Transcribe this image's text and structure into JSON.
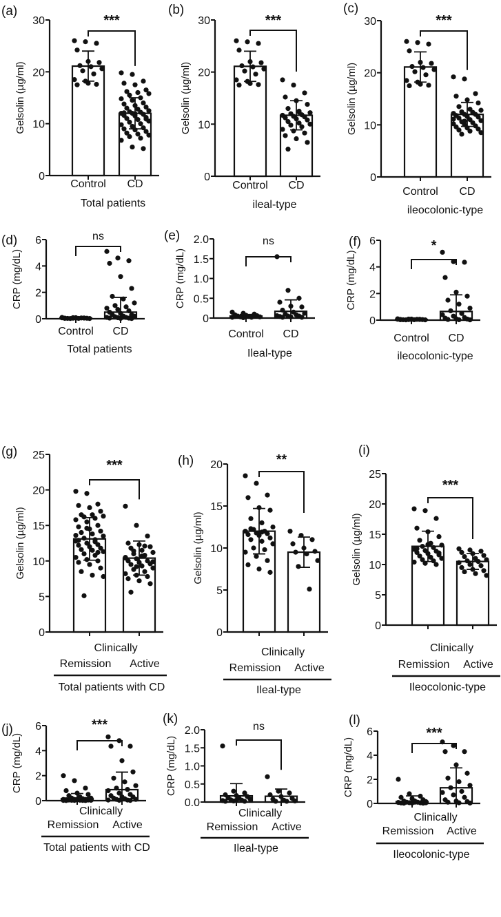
{
  "chart_data": [
    {
      "id": "a",
      "type": "bar",
      "panel_label": "(a)",
      "ylabel": "Gelsolin (µg/ml)",
      "ylim": [
        0,
        30
      ],
      "yticks": [
        "0",
        "10",
        "20",
        "30"
      ],
      "ytick_values": [
        0,
        10,
        20,
        30
      ],
      "significance": "***",
      "categories": [
        "Control",
        "CD"
      ],
      "clinically_label": "",
      "xlabel": "Total patients",
      "series": [
        {
          "name": "Control",
          "mean": 21.1,
          "sd": 2.9,
          "points": [
            26,
            25.8,
            25.5,
            24.2,
            22,
            21.8,
            21.2,
            21,
            20.6,
            20.2,
            19.6,
            18.5,
            18.2,
            17.6,
            17.5,
            17.8
          ]
        },
        {
          "name": "CD",
          "mean": 12.0,
          "sd": 3.0,
          "points": [
            19.8,
            19.5,
            18.2,
            17.8,
            17.5,
            16.5,
            16.2,
            16,
            15.8,
            15.5,
            15,
            14.8,
            14.5,
            14,
            13.8,
            13.5,
            13.2,
            13,
            12.8,
            12.5,
            12.3,
            12.2,
            12,
            12,
            11.8,
            11.6,
            11.5,
            11.2,
            11,
            10.8,
            10.5,
            10.3,
            10,
            9.8,
            9.5,
            9.2,
            9,
            8.8,
            8.5,
            8.2,
            8,
            7.8,
            7.5,
            7.2,
            6.8,
            5.5,
            5.2,
            12.1,
            11.9,
            10.9
          ]
        }
      ]
    },
    {
      "id": "b",
      "type": "bar",
      "panel_label": "(b)",
      "ylabel": "Gelsolin (µg/ml)",
      "ylim": [
        0,
        30
      ],
      "yticks": [
        "0",
        "10",
        "20",
        "30"
      ],
      "ytick_values": [
        0,
        10,
        20,
        30
      ],
      "significance": "***",
      "categories": [
        "Control",
        "CD"
      ],
      "clinically_label": "",
      "xlabel": "ileal-type",
      "series": [
        {
          "name": "Control",
          "mean": 21.1,
          "sd": 2.9,
          "points": [
            26,
            25.8,
            25.5,
            24.2,
            22,
            21.8,
            21.2,
            21,
            20.6,
            20.2,
            19.6,
            18.5,
            18.2,
            17.6,
            17.5,
            17.8
          ]
        },
        {
          "name": "CD",
          "mean": 11.7,
          "sd": 2.8,
          "points": [
            18.5,
            17.5,
            16,
            15.2,
            14.5,
            13.8,
            13,
            12.5,
            12.2,
            12,
            11.8,
            11.7,
            11.5,
            11.4,
            11.2,
            11,
            10.8,
            10.5,
            10.2,
            10,
            9.8,
            9.5,
            9,
            8.7,
            8.3,
            7.8,
            7.2,
            6.5,
            5.2,
            12.3
          ]
        }
      ]
    },
    {
      "id": "c",
      "type": "bar",
      "panel_label": "(c)",
      "ylabel": "Gelsolin (µg/ml)",
      "ylim": [
        0,
        30
      ],
      "yticks": [
        "0",
        "10",
        "20",
        "30"
      ],
      "ytick_values": [
        0,
        10,
        20,
        30
      ],
      "significance": "***",
      "categories": [
        "Control",
        "CD"
      ],
      "clinically_label": "",
      "xlabel": "ileocolonic-type",
      "series": [
        {
          "name": "Control",
          "mean": 21.1,
          "sd": 2.9,
          "points": [
            26,
            25.8,
            25.5,
            24.2,
            22,
            21.8,
            21.2,
            21,
            20.6,
            20.2,
            19.6,
            18.5,
            18.2,
            17.6,
            17.5,
            17.8
          ]
        },
        {
          "name": "CD",
          "mean": 12.0,
          "sd": 2.3,
          "points": [
            19.2,
            18.8,
            16,
            15.5,
            14.8,
            14.2,
            13.5,
            13,
            12.8,
            12.5,
            12.3,
            12.2,
            12,
            12,
            11.8,
            11.6,
            11.5,
            11.3,
            11,
            10.8,
            10.6,
            10.4,
            10.2,
            10,
            9.8,
            9.6,
            9.4,
            9.2,
            9,
            8.8,
            8.5,
            8.2,
            12.4,
            11.1,
            10.7
          ]
        }
      ]
    },
    {
      "id": "d",
      "type": "bar",
      "panel_label": "(d)",
      "ylabel": "CRP (mg/dL)",
      "ylim": [
        0,
        6
      ],
      "yticks": [
        "0",
        "2",
        "4",
        "6"
      ],
      "ytick_values": [
        0,
        2,
        4,
        6
      ],
      "significance": "ns",
      "categories": [
        "Control",
        "CD"
      ],
      "clinically_label": "",
      "xlabel": "Total patients",
      "series": [
        {
          "name": "Control",
          "mean": 0.05,
          "sd": 0.03,
          "points": [
            0.1,
            0.08,
            0.06,
            0.05,
            0.05,
            0.04,
            0.03,
            0.03,
            0.02,
            0.02,
            0.06,
            0.07,
            0.04,
            0.05,
            0.03,
            0.08
          ]
        },
        {
          "name": "CD",
          "mean": 0.5,
          "sd": 1.12,
          "points": [
            5.1,
            4.6,
            4.4,
            4.2,
            3.2,
            2.3,
            1.7,
            1.5,
            1.2,
            1.0,
            0.9,
            0.8,
            0.7,
            0.6,
            0.5,
            0.4,
            0.3,
            0.3,
            0.2,
            0.2,
            0.15,
            0.1,
            0.1,
            0.08,
            0.05,
            0.05,
            0.03,
            0.02
          ]
        }
      ]
    },
    {
      "id": "e",
      "type": "bar",
      "panel_label": "(e)",
      "ylabel": "CRP (mg/dL)",
      "ylim": [
        0,
        2
      ],
      "yticks": [
        "0",
        "0.5",
        "1.0",
        "1.5",
        "2.0"
      ],
      "ytick_values": [
        0,
        0.5,
        1,
        1.5,
        2
      ],
      "significance": "ns",
      "categories": [
        "Control",
        "CD"
      ],
      "clinically_label": "",
      "xlabel": "Ileal-type",
      "series": [
        {
          "name": "Control",
          "mean": 0.05,
          "sd": 0.04,
          "points": [
            0.15,
            0.12,
            0.1,
            0.08,
            0.07,
            0.06,
            0.05,
            0.04,
            0.03,
            0.03,
            0.02,
            0.02,
            0.01,
            0.05,
            0.04,
            0.06
          ]
        },
        {
          "name": "CD",
          "mean": 0.17,
          "sd": 0.29,
          "points": [
            1.55,
            0.7,
            0.5,
            0.4,
            0.3,
            0.28,
            0.2,
            0.15,
            0.12,
            0.1,
            0.08,
            0.06,
            0.05,
            0.05,
            0.04,
            0.03,
            0.02,
            0.02
          ]
        }
      ]
    },
    {
      "id": "f",
      "type": "bar",
      "panel_label": "(f)",
      "ylabel": "CRP (mg/dL)",
      "ylim": [
        0,
        6
      ],
      "yticks": [
        "0",
        "2",
        "4",
        "6"
      ],
      "ytick_values": [
        0,
        2,
        4,
        6
      ],
      "significance": "*",
      "categories": [
        "Control",
        "CD"
      ],
      "clinically_label": "",
      "xlabel": "ileocolonic-type",
      "series": [
        {
          "name": "Control",
          "mean": 0.05,
          "sd": 0.03,
          "points": [
            0.1,
            0.08,
            0.06,
            0.05,
            0.05,
            0.04,
            0.03,
            0.03,
            0.02,
            0.02,
            0.06,
            0.07,
            0.04,
            0.05,
            0.03,
            0.08
          ]
        },
        {
          "name": "CD",
          "mean": 0.65,
          "sd": 1.25,
          "points": [
            5.1,
            4.4,
            4.35,
            3.2,
            2.1,
            1.8,
            1.5,
            1.2,
            0.9,
            0.7,
            0.5,
            0.4,
            0.3,
            0.2,
            0.15,
            0.1,
            0.08,
            0.05,
            0.03,
            0.02
          ]
        }
      ]
    },
    {
      "id": "g",
      "type": "bar",
      "panel_label": "(g)",
      "ylabel": "Gelsolin (µg/ml)",
      "ylim": [
        0,
        25
      ],
      "yticks": [
        "0",
        "5",
        "10",
        "15",
        "20",
        "25"
      ],
      "ytick_values": [
        0,
        5,
        10,
        15,
        20,
        25
      ],
      "significance": "***",
      "categories": [
        "Remission",
        "Active"
      ],
      "clinically_label": "Clinically",
      "xlabel": "Total patients with CD",
      "series": [
        {
          "name": "Remission",
          "mean": 13.1,
          "sd": 3.0,
          "points": [
            19.8,
            19.5,
            18,
            17.8,
            17.5,
            17,
            16.5,
            16.5,
            16.3,
            16.2,
            16,
            15.8,
            15.5,
            15,
            14.8,
            14.5,
            14.2,
            14,
            13.8,
            13.5,
            13.2,
            13,
            12.8,
            12.5,
            12.3,
            12.2,
            12,
            11.8,
            11.6,
            11.5,
            11.3,
            11,
            10.8,
            10.5,
            10.2,
            10,
            9.8,
            9.5,
            9,
            8.5,
            8,
            7.8,
            5.1,
            12.7,
            13.6,
            14.6,
            11.2,
            12.9
          ]
        },
        {
          "name": "Active",
          "mean": 10.4,
          "sd": 2.4,
          "points": [
            17.7,
            15,
            13.5,
            12.5,
            12.3,
            12,
            11.8,
            11.5,
            11.2,
            11,
            10.8,
            10.5,
            10.3,
            10,
            10,
            9.8,
            9.6,
            9.5,
            9.3,
            9,
            8.8,
            8.5,
            8.2,
            8,
            7.8,
            7.5,
            7.2,
            6.8,
            5.6,
            10.7,
            9.9,
            11.4,
            12.1,
            10.4,
            9.2
          ]
        }
      ]
    },
    {
      "id": "h",
      "type": "bar",
      "panel_label": "(h)",
      "ylabel": "Gelsolin (µg/ml)",
      "ylim": [
        0,
        20
      ],
      "yticks": [
        "0",
        "5",
        "10",
        "15",
        "20"
      ],
      "ytick_values": [
        0,
        5,
        10,
        15,
        20
      ],
      "significance": "**",
      "categories": [
        "Remission",
        "Active"
      ],
      "clinically_label": "Clinically",
      "xlabel": "Ileal-type",
      "series": [
        {
          "name": "Remission",
          "mean": 12.0,
          "sd": 2.7,
          "points": [
            18.6,
            17.7,
            16.3,
            16,
            14.8,
            14.5,
            13.5,
            13,
            12.5,
            12.2,
            12,
            12,
            11.8,
            11.7,
            11.6,
            11.5,
            11.2,
            11,
            10.8,
            10.5,
            10,
            9.8,
            9.5,
            9,
            8.5,
            8,
            7.5,
            7.1,
            12.3,
            11.9
          ]
        },
        {
          "name": "Active",
          "mean": 9.5,
          "sd": 1.8,
          "points": [
            12,
            11.5,
            11,
            10.5,
            10,
            9.6,
            9.5,
            9.3,
            8.5,
            7.8,
            5.1
          ]
        }
      ]
    },
    {
      "id": "i",
      "type": "bar",
      "panel_label": "(i)",
      "ylabel": "Gelsolin (µg/ml)",
      "ylim": [
        0,
        25
      ],
      "yticks": [
        "0",
        "5",
        "10",
        "15",
        "20",
        "25"
      ],
      "ytick_values": [
        0,
        5,
        10,
        15,
        20,
        25
      ],
      "significance": "***",
      "categories": [
        "Remission",
        "Active"
      ],
      "clinically_label": "Clinically",
      "xlabel": "Ileocolonic-type",
      "series": [
        {
          "name": "Remission",
          "mean": 13.0,
          "sd": 2.5,
          "points": [
            19.2,
            18.9,
            17.6,
            16,
            15.4,
            14.6,
            14,
            13.5,
            13.2,
            13,
            12.8,
            12.5,
            12.3,
            12.2,
            12,
            11.8,
            11.6,
            11.4,
            11.2,
            11,
            10.8,
            10.6,
            10.4,
            10.2,
            10,
            12.6,
            13.3,
            11.9
          ]
        },
        {
          "name": "Active",
          "mean": 10.5,
          "sd": 1.3,
          "points": [
            12.6,
            12.4,
            12.2,
            12,
            11.8,
            11.5,
            11.3,
            11,
            10.8,
            10.6,
            10.5,
            10.3,
            10,
            9.8,
            9.5,
            9.2,
            9,
            8.8,
            8.5,
            8.2
          ]
        }
      ]
    },
    {
      "id": "j",
      "type": "bar",
      "panel_label": "(j)",
      "ylabel": "CRP (mg/dL)",
      "ylim": [
        0,
        6
      ],
      "yticks": [
        "0",
        "2",
        "4",
        "6"
      ],
      "ytick_values": [
        0,
        2,
        4,
        6
      ],
      "significance": "***",
      "categories": [
        "Remission",
        "Active"
      ],
      "clinically_label": "Clinically",
      "xlabel": "Total patients with CD",
      "series": [
        {
          "name": "Remission",
          "mean": 0.15,
          "sd": 0.42,
          "points": [
            2.0,
            1.6,
            1.0,
            0.8,
            0.6,
            0.5,
            0.4,
            0.3,
            0.2,
            0.2,
            0.15,
            0.1,
            0.1,
            0.1,
            0.08,
            0.06,
            0.05,
            0.05,
            0.04,
            0.03,
            0.03,
            0.02,
            0.02,
            0.02,
            0.01,
            0.01,
            0.1,
            0.12,
            0.07,
            0.05
          ]
        },
        {
          "name": "Active",
          "mean": 0.88,
          "sd": 1.4,
          "points": [
            5.1,
            4.8,
            4.35,
            4.35,
            3.2,
            2.3,
            1.8,
            1.5,
            1.2,
            1.0,
            0.9,
            0.8,
            0.6,
            0.5,
            0.4,
            0.3,
            0.3,
            0.2,
            0.15,
            0.1,
            0.1,
            0.05,
            0.05,
            0.03,
            0.02
          ]
        }
      ]
    },
    {
      "id": "k",
      "type": "bar",
      "panel_label": "(k)",
      "ylabel": "CRP (mg/dL)",
      "ylim": [
        0,
        2
      ],
      "yticks": [
        "0.0",
        "0.5",
        "1.0",
        "1.5",
        "2.0"
      ],
      "ytick_values": [
        0,
        0.5,
        1,
        1.5,
        2
      ],
      "significance": "ns",
      "categories": [
        "Remission",
        "Active"
      ],
      "clinically_label": "Clinically",
      "xlabel": "Ileal-type",
      "series": [
        {
          "name": "Remission",
          "mean": 0.17,
          "sd": 0.34,
          "points": [
            1.55,
            0.3,
            0.25,
            0.2,
            0.18,
            0.15,
            0.12,
            0.1,
            0.08,
            0.06,
            0.05,
            0.04,
            0.03,
            0.02,
            0.02,
            0.05
          ]
        },
        {
          "name": "Active",
          "mean": 0.16,
          "sd": 0.2,
          "points": [
            0.7,
            0.3,
            0.25,
            0.2,
            0.15,
            0.1,
            0.08,
            0.05,
            0.03,
            0.02,
            0.02
          ]
        }
      ]
    },
    {
      "id": "l",
      "type": "bar",
      "panel_label": "(l)",
      "ylabel": "CRP (mg/dL)",
      "ylim": [
        0,
        6
      ],
      "yticks": [
        "0",
        "2",
        "4",
        "6"
      ],
      "ytick_values": [
        0,
        2,
        4,
        6
      ],
      "significance": "***",
      "categories": [
        "Remission",
        "Active"
      ],
      "clinically_label": "Clinically",
      "xlabel": "Ileocolonic-type",
      "series": [
        {
          "name": "Remission",
          "mean": 0.15,
          "sd": 0.47,
          "points": [
            2.0,
            0.8,
            0.6,
            0.5,
            0.4,
            0.3,
            0.2,
            0.2,
            0.15,
            0.1,
            0.1,
            0.08,
            0.06,
            0.05,
            0.04,
            0.03,
            0.02,
            0.02,
            0.1,
            0.05
          ]
        },
        {
          "name": "Active",
          "mean": 1.3,
          "sd": 1.65,
          "points": [
            5.1,
            4.8,
            4.3,
            4.3,
            3.2,
            2.5,
            2.1,
            1.8,
            1.5,
            1.3,
            1.0,
            0.9,
            0.7,
            0.5,
            0.3,
            0.2,
            0.15,
            0.1,
            0.05,
            0.03
          ]
        }
      ]
    }
  ]
}
